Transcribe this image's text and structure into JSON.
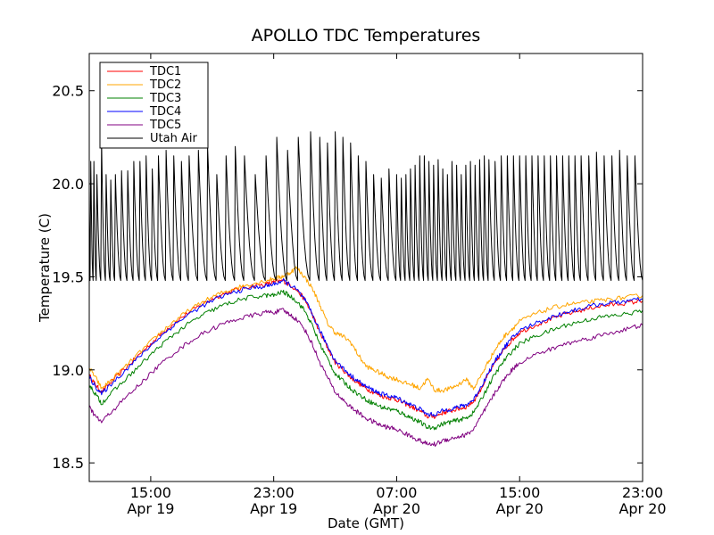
{
  "chart_data": {
    "type": "line",
    "title": "APOLLO TDC Temperatures",
    "xlabel": "Date (GMT)",
    "ylabel": "Temperature (C)",
    "x_unit": "hours since Apr 19 11:00 GMT",
    "xlim": [
      0,
      36
    ],
    "ylim": [
      18.4,
      20.7
    ],
    "grid": false,
    "legend_position": "top-left",
    "yticks": [
      {
        "value": 18.5,
        "label": "18.5"
      },
      {
        "value": 19.0,
        "label": "19.0"
      },
      {
        "value": 19.5,
        "label": "19.5"
      },
      {
        "value": 20.0,
        "label": "20.0"
      },
      {
        "value": 20.5,
        "label": "20.5"
      }
    ],
    "xticks": [
      {
        "value": 4,
        "time": "15:00",
        "date": "Apr 19"
      },
      {
        "value": 12,
        "time": "23:00",
        "date": "Apr 19"
      },
      {
        "value": 20,
        "time": "07:00",
        "date": "Apr 20"
      },
      {
        "value": 28,
        "time": "15:00",
        "date": "Apr 20"
      },
      {
        "value": 36,
        "time": "23:00",
        "date": "Apr 20"
      }
    ],
    "series": [
      {
        "name": "TDC1",
        "color": "#ff0000",
        "x": [
          0,
          0.4,
          0.8,
          1.5,
          2.5,
          3.5,
          4.5,
          5.5,
          6.5,
          7.5,
          8.5,
          9.5,
          10.5,
          11.5,
          12.0,
          12.6,
          13.0,
          13.5,
          14.0,
          14.5,
          15.0,
          15.5,
          16.0,
          16.5,
          17.0,
          17.5,
          18.0,
          18.5,
          19.0,
          19.5,
          20.0,
          20.5,
          21.0,
          21.5,
          22.0,
          22.5,
          23.0,
          23.5,
          24.0,
          24.5,
          25.0,
          25.5,
          26.0,
          26.5,
          27.0,
          27.5,
          28.0,
          29.0,
          30.0,
          31.0,
          32.0,
          33.0,
          34.0,
          35.0,
          36.0
        ],
        "y": [
          18.97,
          18.92,
          18.88,
          18.94,
          19.02,
          19.1,
          19.18,
          19.25,
          19.31,
          19.36,
          19.4,
          19.43,
          19.45,
          19.46,
          19.47,
          19.48,
          19.46,
          19.43,
          19.38,
          19.3,
          19.2,
          19.12,
          19.04,
          19.0,
          18.96,
          18.93,
          18.9,
          18.88,
          18.86,
          18.85,
          18.84,
          18.82,
          18.8,
          18.78,
          18.75,
          18.75,
          18.77,
          18.78,
          18.79,
          18.8,
          18.83,
          18.9,
          18.98,
          19.05,
          19.11,
          19.16,
          19.2,
          19.24,
          19.27,
          19.3,
          19.32,
          19.34,
          19.35,
          19.36,
          19.37
        ]
      },
      {
        "name": "TDC2",
        "color": "#ffa500",
        "x": [
          0,
          0.4,
          0.8,
          1.5,
          2.5,
          3.5,
          4.5,
          5.5,
          6.5,
          7.5,
          8.5,
          9.5,
          10.5,
          11.5,
          12.0,
          12.5,
          13.0,
          13.5,
          14.0,
          14.5,
          15.0,
          15.5,
          16.0,
          16.5,
          17.0,
          17.5,
          18.0,
          18.5,
          19.0,
          19.5,
          20.0,
          20.5,
          21.0,
          21.5,
          22.0,
          22.5,
          23.0,
          23.5,
          24.0,
          24.5,
          25.0,
          25.5,
          26.0,
          26.5,
          27.0,
          27.5,
          28.0,
          29.0,
          30.0,
          31.0,
          32.0,
          33.0,
          34.0,
          35.0,
          36.0
        ],
        "y": [
          19.01,
          18.96,
          18.9,
          18.95,
          19.03,
          19.11,
          19.19,
          19.26,
          19.32,
          19.37,
          19.41,
          19.44,
          19.46,
          19.48,
          19.49,
          19.5,
          19.52,
          19.55,
          19.5,
          19.44,
          19.35,
          19.25,
          19.2,
          19.18,
          19.15,
          19.08,
          19.02,
          19.0,
          18.98,
          18.96,
          18.95,
          18.93,
          18.92,
          18.9,
          18.95,
          18.89,
          18.89,
          18.9,
          18.92,
          18.95,
          18.9,
          18.97,
          19.05,
          19.12,
          19.18,
          19.22,
          19.26,
          19.3,
          19.33,
          19.35,
          19.36,
          19.37,
          19.38,
          19.39,
          19.4
        ]
      },
      {
        "name": "TDC3",
        "color": "#008000",
        "x": [
          0,
          0.4,
          0.8,
          1.5,
          2.5,
          3.5,
          4.5,
          5.5,
          6.5,
          7.5,
          8.5,
          9.5,
          10.5,
          11.5,
          12.0,
          12.6,
          13.0,
          13.5,
          14.0,
          14.5,
          15.0,
          15.5,
          16.0,
          16.5,
          17.0,
          17.5,
          18.0,
          18.5,
          19.0,
          19.5,
          20.0,
          20.5,
          21.0,
          21.5,
          22.0,
          22.5,
          23.0,
          23.5,
          24.0,
          24.5,
          25.0,
          25.5,
          26.0,
          26.5,
          27.0,
          27.5,
          28.0,
          29.0,
          30.0,
          31.0,
          32.0,
          33.0,
          34.0,
          35.0,
          36.0
        ],
        "y": [
          18.92,
          18.87,
          18.82,
          18.88,
          18.96,
          19.04,
          19.12,
          19.19,
          19.25,
          19.3,
          19.34,
          19.37,
          19.39,
          19.4,
          19.4,
          19.42,
          19.4,
          19.37,
          19.32,
          19.24,
          19.14,
          19.06,
          18.98,
          18.94,
          18.9,
          18.87,
          18.84,
          18.82,
          18.8,
          18.79,
          18.78,
          18.76,
          18.74,
          18.72,
          18.69,
          18.69,
          18.71,
          18.72,
          18.73,
          18.74,
          18.77,
          18.84,
          18.92,
          18.99,
          19.05,
          19.1,
          19.14,
          19.18,
          19.21,
          19.24,
          19.26,
          19.28,
          19.29,
          19.3,
          19.32
        ]
      },
      {
        "name": "TDC4",
        "color": "#0000ff",
        "x": [
          0,
          0.4,
          0.8,
          1.5,
          2.5,
          3.5,
          4.5,
          5.5,
          6.5,
          7.5,
          8.5,
          9.5,
          10.5,
          11.5,
          12.0,
          12.6,
          13.0,
          13.5,
          14.0,
          14.5,
          15.0,
          15.5,
          16.0,
          16.5,
          17.0,
          17.5,
          18.0,
          18.5,
          19.0,
          19.5,
          20.0,
          20.5,
          21.0,
          21.5,
          22.0,
          22.5,
          23.0,
          23.5,
          24.0,
          24.5,
          25.0,
          25.5,
          26.0,
          26.5,
          27.0,
          27.5,
          28.0,
          29.0,
          30.0,
          31.0,
          32.0,
          33.0,
          34.0,
          35.0,
          36.0
        ],
        "y": [
          18.96,
          18.91,
          18.87,
          18.93,
          19.01,
          19.09,
          19.17,
          19.24,
          19.3,
          19.35,
          19.39,
          19.42,
          19.44,
          19.45,
          19.46,
          19.48,
          19.46,
          19.43,
          19.38,
          19.3,
          19.21,
          19.13,
          19.05,
          19.01,
          18.97,
          18.94,
          18.91,
          18.89,
          18.87,
          18.86,
          18.85,
          18.83,
          18.81,
          18.79,
          18.76,
          18.76,
          18.78,
          18.79,
          18.8,
          18.81,
          18.84,
          18.91,
          18.99,
          19.06,
          19.12,
          19.17,
          19.21,
          19.25,
          19.28,
          19.31,
          19.33,
          19.35,
          19.36,
          19.37,
          19.38
        ]
      },
      {
        "name": "TDC5",
        "color": "#800080",
        "x": [
          0,
          0.4,
          0.8,
          1.5,
          2.5,
          3.5,
          4.5,
          5.5,
          6.5,
          7.5,
          8.5,
          9.5,
          10.5,
          11.5,
          12.0,
          12.6,
          13.0,
          13.5,
          14.0,
          14.5,
          15.0,
          15.5,
          16.0,
          16.5,
          17.0,
          17.5,
          18.0,
          18.5,
          19.0,
          19.5,
          20.0,
          20.5,
          21.0,
          21.5,
          22.0,
          22.5,
          23.0,
          23.5,
          24.0,
          24.5,
          25.0,
          25.5,
          26.0,
          26.5,
          27.0,
          27.5,
          28.0,
          29.0,
          30.0,
          31.0,
          32.0,
          33.0,
          34.0,
          35.0,
          36.0
        ],
        "y": [
          18.8,
          18.75,
          18.72,
          18.78,
          18.86,
          18.94,
          19.02,
          19.09,
          19.15,
          19.2,
          19.24,
          19.27,
          19.29,
          19.31,
          19.31,
          19.32,
          19.3,
          19.27,
          19.22,
          19.14,
          19.04,
          18.96,
          18.88,
          18.84,
          18.8,
          18.77,
          18.74,
          18.72,
          18.7,
          18.69,
          18.68,
          18.66,
          18.64,
          18.62,
          18.6,
          18.6,
          18.62,
          18.63,
          18.64,
          18.65,
          18.68,
          18.75,
          18.82,
          18.89,
          18.95,
          19.0,
          19.04,
          19.08,
          19.11,
          19.14,
          19.16,
          19.18,
          19.2,
          19.22,
          19.24
        ]
      },
      {
        "name": "Utah Air",
        "color": "#000000",
        "pattern": "sawtooth: short rises to a peak then slower decay to the base level",
        "base": 19.48,
        "x_start": 0,
        "x_end": 36,
        "peak_times": [
          0.1,
          0.3,
          0.5,
          0.8,
          1.1,
          1.4,
          1.7,
          2.1,
          2.5,
          2.9,
          3.3,
          3.7,
          4.1,
          4.5,
          5.0,
          5.5,
          6.0,
          6.5,
          7.1,
          7.7,
          8.3,
          8.9,
          9.5,
          10.1,
          10.8,
          11.5,
          12.2,
          12.9,
          13.6,
          14.4,
          15.0,
          15.5,
          16.0,
          16.5,
          17.0,
          17.5,
          18.0,
          18.5,
          19.0,
          19.5,
          20.0,
          20.3,
          20.6,
          20.9,
          21.2,
          21.5,
          21.8,
          22.1,
          22.4,
          22.7,
          23.0,
          23.3,
          23.6,
          23.9,
          24.2,
          24.5,
          24.8,
          25.1,
          25.4,
          25.7,
          26.0,
          26.4,
          26.8,
          27.2,
          27.6,
          28.0,
          28.4,
          28.8,
          29.2,
          29.6,
          30.0,
          30.4,
          30.8,
          31.2,
          31.6,
          32.0,
          32.5,
          33.0,
          33.5,
          34.0,
          34.5,
          35.0,
          35.5
        ],
        "peak_values": [
          20.12,
          20.12,
          20.05,
          20.23,
          20.05,
          20.02,
          20.05,
          20.07,
          20.07,
          20.12,
          20.12,
          20.15,
          20.08,
          20.15,
          20.18,
          20.15,
          20.12,
          20.15,
          20.18,
          20.2,
          20.05,
          20.15,
          20.2,
          20.15,
          20.05,
          20.15,
          20.25,
          20.18,
          20.25,
          20.28,
          20.25,
          20.22,
          20.28,
          20.25,
          20.22,
          20.15,
          20.12,
          20.05,
          20.03,
          20.08,
          20.05,
          20.03,
          20.05,
          20.08,
          20.1,
          20.15,
          20.15,
          20.12,
          20.1,
          20.13,
          20.08,
          20.05,
          20.12,
          20.1,
          20.05,
          20.1,
          20.12,
          20.1,
          20.13,
          20.15,
          20.13,
          20.12,
          20.15,
          20.15,
          20.15,
          20.15,
          20.15,
          20.15,
          20.15,
          20.15,
          20.15,
          20.15,
          20.15,
          20.15,
          20.15,
          20.15,
          20.15,
          20.17,
          20.15,
          20.15,
          20.18,
          20.15,
          20.15
        ]
      }
    ]
  }
}
